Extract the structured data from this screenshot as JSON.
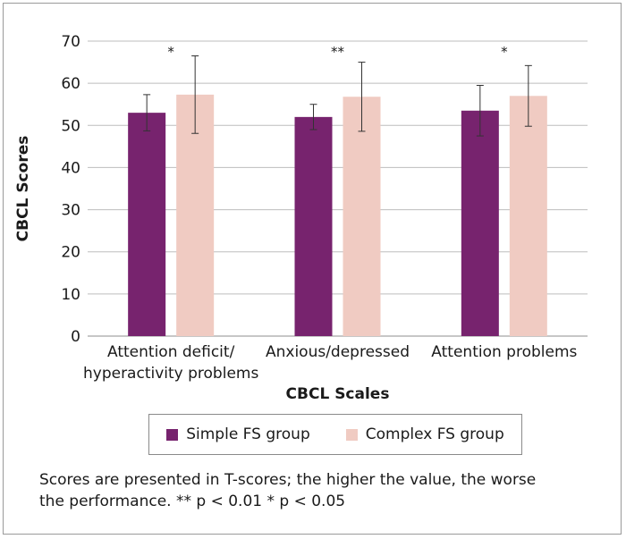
{
  "chart_data": {
    "type": "bar",
    "xlabel": "CBCL Scales",
    "ylabel": "CBCL Scores",
    "ylim": [
      0,
      70
    ],
    "yticks": [
      0,
      10,
      20,
      30,
      40,
      50,
      60,
      70
    ],
    "grid": true,
    "legend_position": "bottom",
    "categories": [
      [
        "Attention deficit/",
        "hyperactivity problems"
      ],
      [
        "Anxious/depressed"
      ],
      [
        "Attention problems"
      ]
    ],
    "significance": [
      "*",
      "**",
      "*"
    ],
    "series": [
      {
        "name": "Simple FS group",
        "color": "#77236e",
        "values": [
          53,
          52,
          53.5
        ],
        "error": [
          4.3,
          3,
          6
        ]
      },
      {
        "name": "Complex FS group",
        "color": "#f0cbc2",
        "values": [
          57.3,
          56.8,
          57
        ],
        "error": [
          9.2,
          8.2,
          7.2
        ]
      }
    ]
  },
  "legend": {
    "simple_label": "Simple FS group",
    "complex_label": "Complex FS group"
  },
  "caption": {
    "line1": "Scores are presented in T-scores; the higher the value, the worse",
    "line2": "the performance. ** p < 0.01 * p < 0.05"
  }
}
